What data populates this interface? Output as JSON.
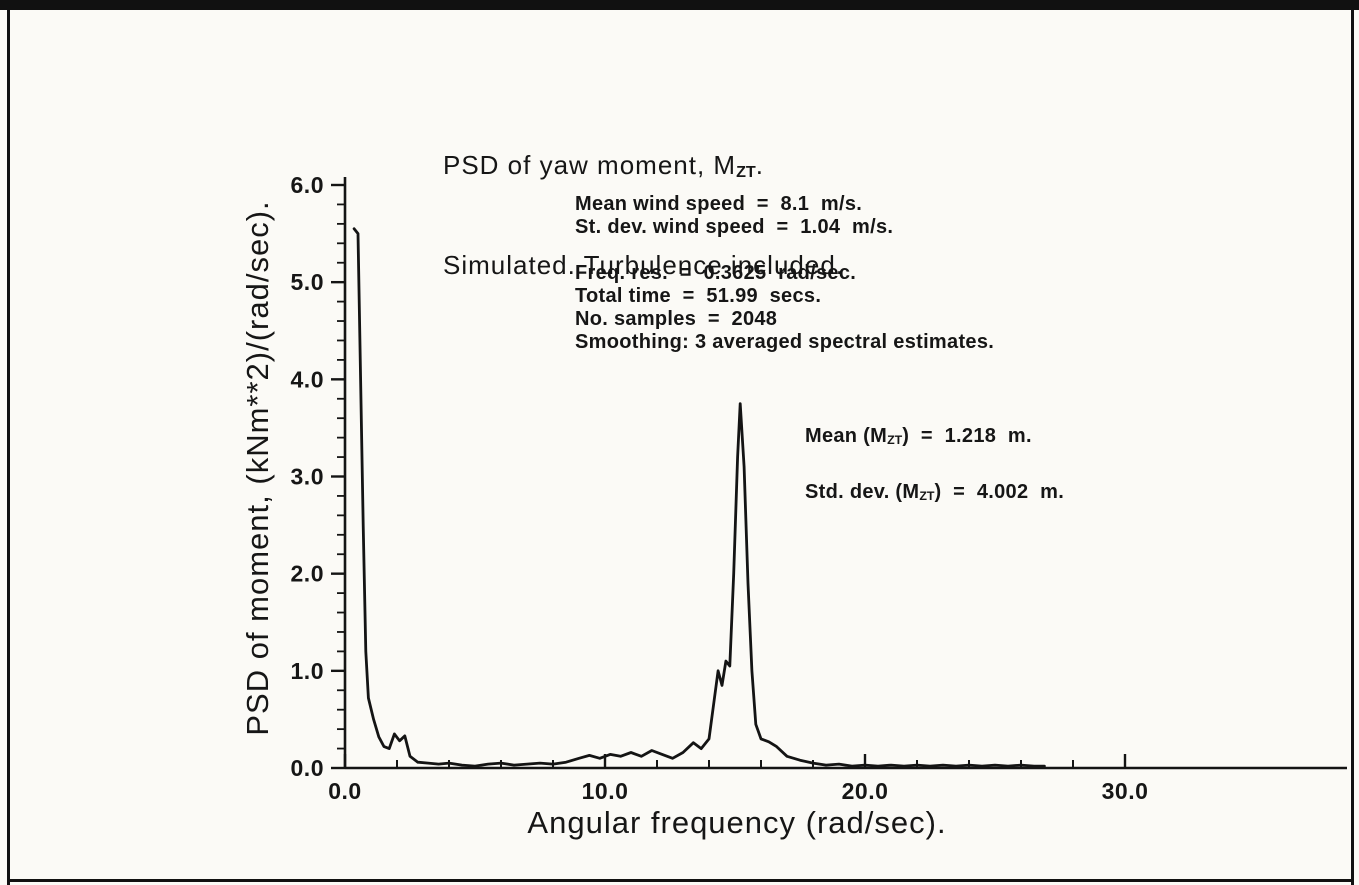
{
  "figure": {
    "kind": "scanned spectral density plot",
    "border_color": "#111111",
    "paper_color": "#fbfaf6"
  },
  "chart_data": {
    "type": "line",
    "title": {
      "line1_prefix": "PSD of yaw moment, M",
      "line1_sub": "ZT",
      "line1_suffix": ".",
      "line2": "Simulated. Turbulence included."
    },
    "ylabel": "PSD of moment, (kNm**2)/(rad/sec).",
    "xlabel": "Angular frequency (rad/sec).",
    "xlim": [
      0,
      30
    ],
    "ylim": [
      0,
      6
    ],
    "grid": false,
    "legend": "none",
    "line_color": "#141414",
    "x_ticks": {
      "values": [
        0,
        10,
        20,
        30
      ],
      "labels": [
        "0.0",
        "10.0",
        "20.0",
        "30.0"
      ],
      "minor_step": 2
    },
    "y_ticks": {
      "values": [
        0,
        1,
        2,
        3,
        4,
        5,
        6
      ],
      "labels": [
        "0.0",
        "1.0",
        "2.0",
        "3.0",
        "4.0",
        "5.0",
        "6.0"
      ],
      "minor_step": 0.2
    },
    "series": [
      {
        "name": "PSD of yaw moment",
        "points": [
          [
            0.35,
            5.55
          ],
          [
            0.5,
            5.5
          ],
          [
            0.6,
            4.0
          ],
          [
            0.7,
            2.5
          ],
          [
            0.8,
            1.2
          ],
          [
            0.9,
            0.72
          ],
          [
            1.1,
            0.5
          ],
          [
            1.3,
            0.32
          ],
          [
            1.5,
            0.22
          ],
          [
            1.7,
            0.2
          ],
          [
            1.9,
            0.35
          ],
          [
            2.1,
            0.28
          ],
          [
            2.3,
            0.33
          ],
          [
            2.5,
            0.12
          ],
          [
            2.8,
            0.06
          ],
          [
            3.2,
            0.05
          ],
          [
            3.6,
            0.04
          ],
          [
            4.0,
            0.05
          ],
          [
            4.5,
            0.03
          ],
          [
            5.0,
            0.02
          ],
          [
            5.5,
            0.04
          ],
          [
            6.0,
            0.05
          ],
          [
            6.5,
            0.03
          ],
          [
            7.0,
            0.04
          ],
          [
            7.5,
            0.05
          ],
          [
            8.0,
            0.04
          ],
          [
            8.5,
            0.06
          ],
          [
            9.0,
            0.1
          ],
          [
            9.4,
            0.13
          ],
          [
            9.8,
            0.1
          ],
          [
            10.2,
            0.14
          ],
          [
            10.6,
            0.12
          ],
          [
            11.0,
            0.16
          ],
          [
            11.4,
            0.12
          ],
          [
            11.8,
            0.18
          ],
          [
            12.2,
            0.14
          ],
          [
            12.6,
            0.1
          ],
          [
            13.0,
            0.16
          ],
          [
            13.4,
            0.26
          ],
          [
            13.7,
            0.2
          ],
          [
            14.0,
            0.3
          ],
          [
            14.2,
            0.7
          ],
          [
            14.35,
            1.0
          ],
          [
            14.5,
            0.85
          ],
          [
            14.65,
            1.1
          ],
          [
            14.8,
            1.05
          ],
          [
            14.95,
            2.0
          ],
          [
            15.1,
            3.2
          ],
          [
            15.2,
            3.75
          ],
          [
            15.35,
            3.1
          ],
          [
            15.5,
            1.9
          ],
          [
            15.65,
            1.0
          ],
          [
            15.8,
            0.45
          ],
          [
            16.0,
            0.3
          ],
          [
            16.3,
            0.27
          ],
          [
            16.6,
            0.22
          ],
          [
            17.0,
            0.12
          ],
          [
            17.5,
            0.08
          ],
          [
            18.0,
            0.05
          ],
          [
            18.5,
            0.03
          ],
          [
            19.0,
            0.04
          ],
          [
            19.5,
            0.02
          ],
          [
            20.0,
            0.03
          ],
          [
            20.5,
            0.02
          ],
          [
            21.0,
            0.03
          ],
          [
            21.5,
            0.02
          ],
          [
            22.0,
            0.03
          ],
          [
            22.5,
            0.02
          ],
          [
            23.0,
            0.03
          ],
          [
            23.5,
            0.02
          ],
          [
            24.0,
            0.03
          ],
          [
            24.5,
            0.02
          ],
          [
            25.0,
            0.03
          ],
          [
            25.5,
            0.02
          ],
          [
            26.0,
            0.03
          ],
          [
            26.5,
            0.02
          ],
          [
            26.9,
            0.02
          ]
        ]
      }
    ],
    "annotations": {
      "wind_stats": {
        "lines": [
          "Mean wind speed  =  8.1  m/s.",
          "St. dev. wind speed  =  1.04  m/s.",
          "",
          "Freq. res.  =  0.3625  rad/sec.",
          "Total time  =  51.99  secs.",
          "No. samples  =  2048",
          "Smoothing: 3 averaged spectral estimates."
        ]
      },
      "mzt_stats": {
        "mean_prefix": "Mean (M",
        "mean_sub": "ZT",
        "mean_suffix": ")  =  1.218  m.",
        "std_prefix": "Std. dev. (M",
        "std_sub": "ZT",
        "std_suffix": ")  =  4.002  m."
      }
    }
  }
}
